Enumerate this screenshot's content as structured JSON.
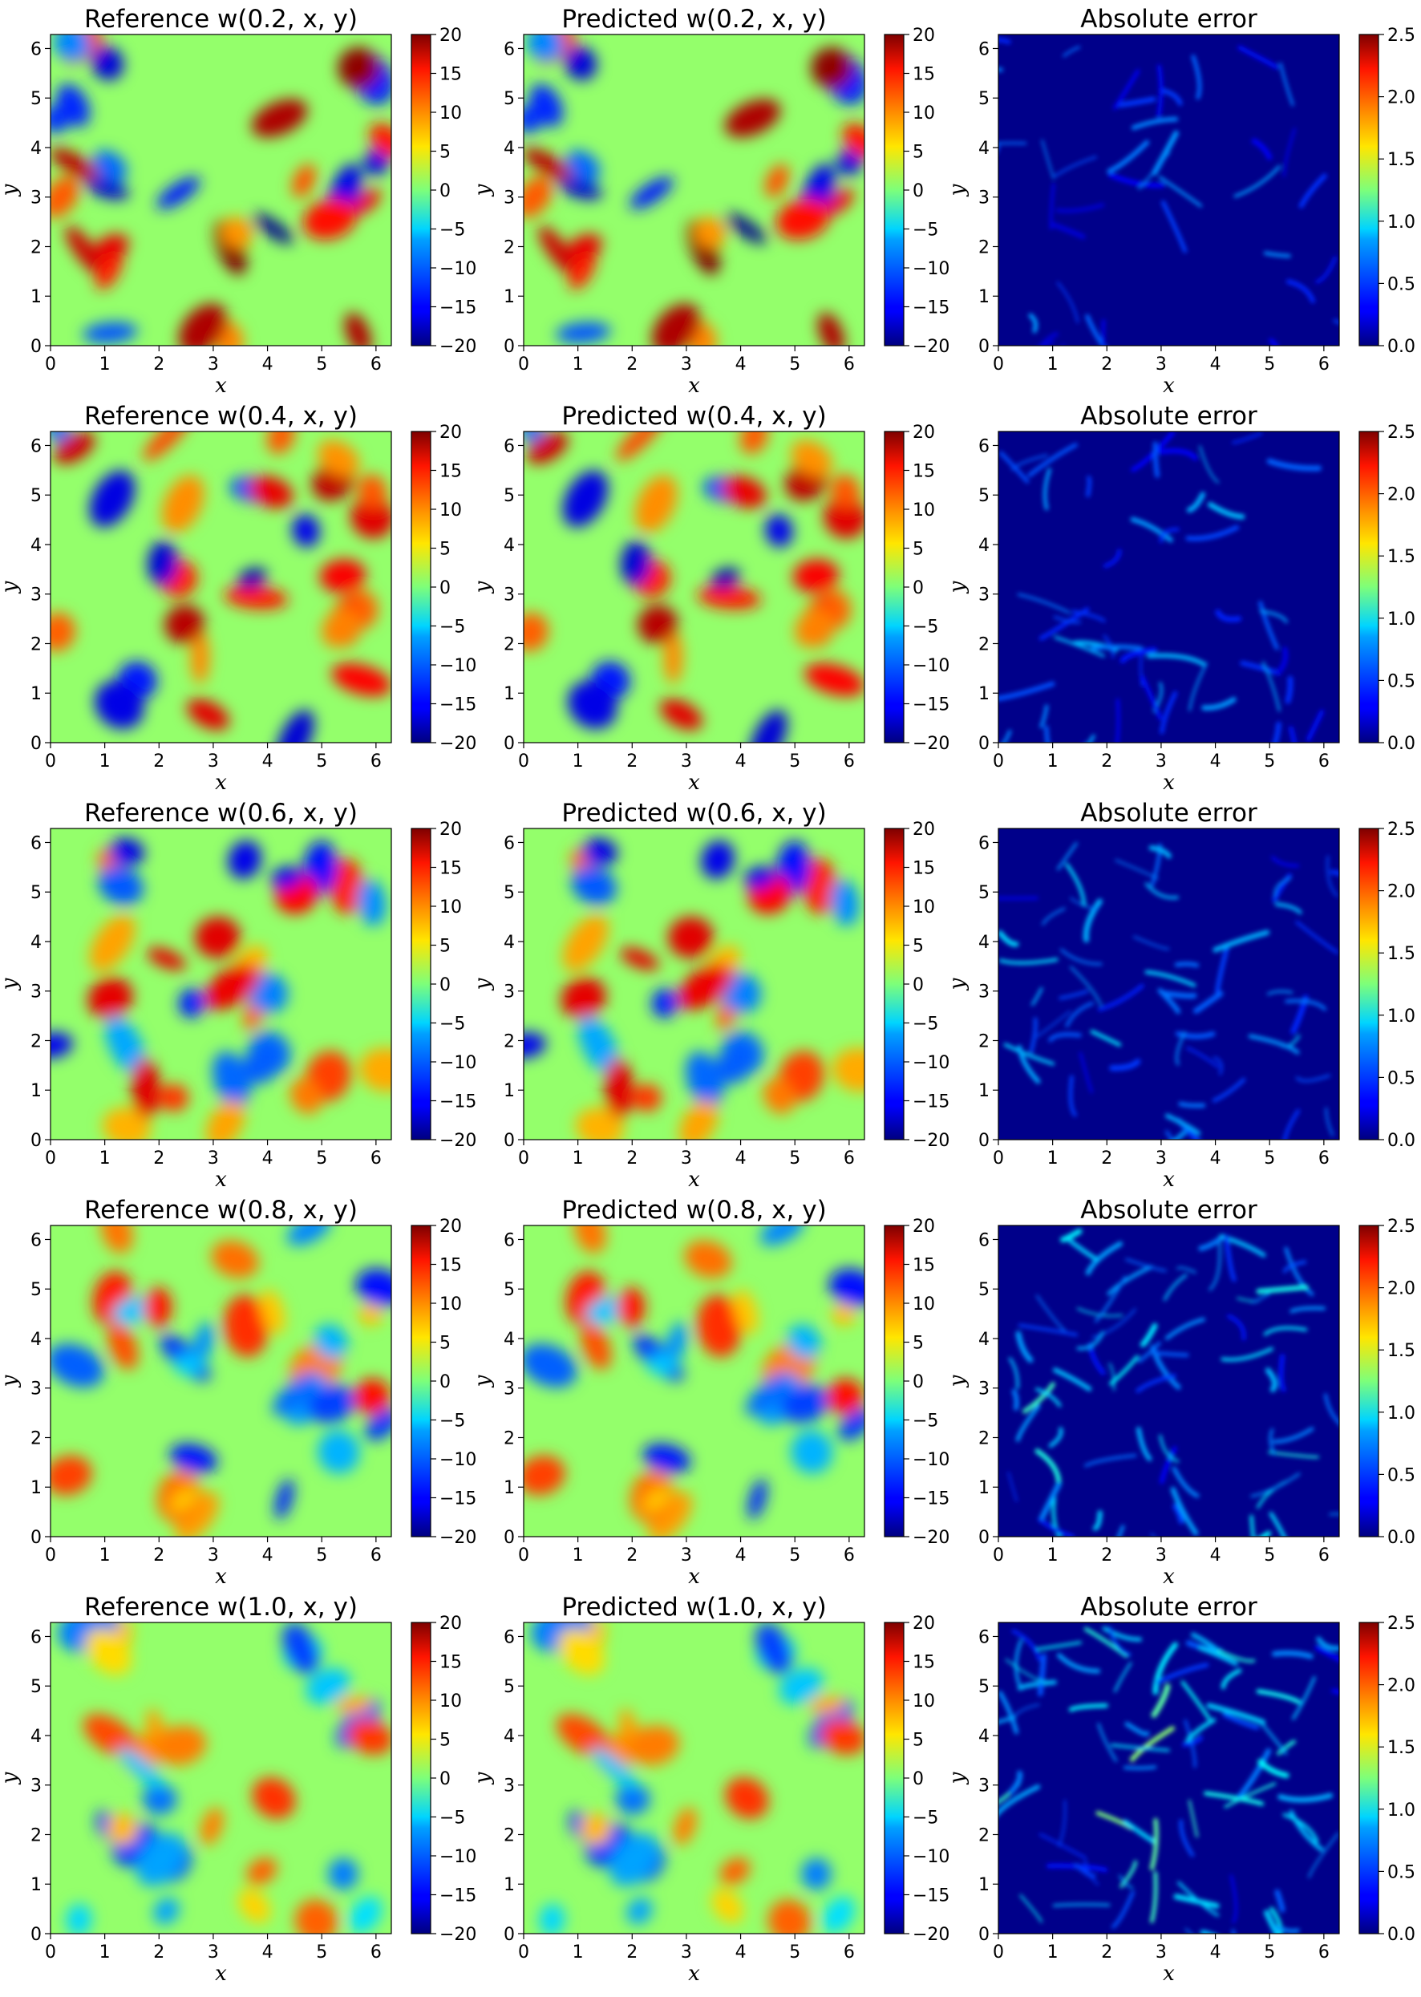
{
  "figure": {
    "rows": 5,
    "cols": 3
  },
  "chart_data": [
    {
      "type": "heatmap",
      "title": "Reference w(0.2, x, y)",
      "xlabel": "x",
      "ylabel": "y",
      "xlim": [
        0,
        6.283
      ],
      "ylim": [
        0,
        6.283
      ],
      "xticks": [
        "0",
        "1",
        "2",
        "3",
        "4",
        "5",
        "6"
      ],
      "yticks": [
        "0",
        "1",
        "2",
        "3",
        "4",
        "5",
        "6"
      ],
      "colorbar": {
        "range": [
          -20,
          20
        ],
        "ticks": [
          "20",
          "15",
          "10",
          "5",
          "0",
          "−5",
          "−10",
          "−15",
          "−20"
        ],
        "colormap": "jet"
      }
    },
    {
      "type": "heatmap",
      "title": "Predicted w(0.2, x, y)",
      "xlabel": "x",
      "ylabel": "y",
      "xlim": [
        0,
        6.283
      ],
      "ylim": [
        0,
        6.283
      ],
      "xticks": [
        "0",
        "1",
        "2",
        "3",
        "4",
        "5",
        "6"
      ],
      "yticks": [
        "0",
        "1",
        "2",
        "3",
        "4",
        "5",
        "6"
      ],
      "colorbar": {
        "range": [
          -20,
          20
        ],
        "ticks": [
          "20",
          "15",
          "10",
          "5",
          "0",
          "−5",
          "−10",
          "−15",
          "−20"
        ],
        "colormap": "jet"
      }
    },
    {
      "type": "heatmap",
      "title": "Absolute error",
      "xlabel": "x",
      "ylabel": "y",
      "xlim": [
        0,
        6.283
      ],
      "ylim": [
        0,
        6.283
      ],
      "xticks": [
        "0",
        "1",
        "2",
        "3",
        "4",
        "5",
        "6"
      ],
      "yticks": [
        "0",
        "1",
        "2",
        "3",
        "4",
        "5",
        "6"
      ],
      "colorbar": {
        "range": [
          0,
          2.5
        ],
        "ticks": [
          "2.5",
          "2.0",
          "1.5",
          "1.0",
          "0.5",
          "0.0"
        ],
        "colormap": "jet"
      }
    },
    {
      "type": "heatmap",
      "title": "Reference w(0.4, x, y)",
      "xlabel": "x",
      "ylabel": "y",
      "xlim": [
        0,
        6.283
      ],
      "ylim": [
        0,
        6.283
      ],
      "xticks": [
        "0",
        "1",
        "2",
        "3",
        "4",
        "5",
        "6"
      ],
      "yticks": [
        "0",
        "1",
        "2",
        "3",
        "4",
        "5",
        "6"
      ],
      "colorbar": {
        "range": [
          -20,
          20
        ],
        "ticks": [
          "20",
          "15",
          "10",
          "5",
          "0",
          "−5",
          "−10",
          "−15",
          "−20"
        ],
        "colormap": "jet"
      }
    },
    {
      "type": "heatmap",
      "title": "Predicted w(0.4, x, y)",
      "xlabel": "x",
      "ylabel": "y",
      "xlim": [
        0,
        6.283
      ],
      "ylim": [
        0,
        6.283
      ],
      "xticks": [
        "0",
        "1",
        "2",
        "3",
        "4",
        "5",
        "6"
      ],
      "yticks": [
        "0",
        "1",
        "2",
        "3",
        "4",
        "5",
        "6"
      ],
      "colorbar": {
        "range": [
          -20,
          20
        ],
        "ticks": [
          "20",
          "15",
          "10",
          "5",
          "0",
          "−5",
          "−10",
          "−15",
          "−20"
        ],
        "colormap": "jet"
      }
    },
    {
      "type": "heatmap",
      "title": "Absolute error",
      "xlabel": "x",
      "ylabel": "y",
      "xlim": [
        0,
        6.283
      ],
      "ylim": [
        0,
        6.283
      ],
      "xticks": [
        "0",
        "1",
        "2",
        "3",
        "4",
        "5",
        "6"
      ],
      "yticks": [
        "0",
        "1",
        "2",
        "3",
        "4",
        "5",
        "6"
      ],
      "colorbar": {
        "range": [
          0,
          2.5
        ],
        "ticks": [
          "2.5",
          "2.0",
          "1.5",
          "1.0",
          "0.5",
          "0.0"
        ],
        "colormap": "jet"
      }
    },
    {
      "type": "heatmap",
      "title": "Reference w(0.6, x, y)",
      "xlabel": "x",
      "ylabel": "y",
      "xlim": [
        0,
        6.283
      ],
      "ylim": [
        0,
        6.283
      ],
      "xticks": [
        "0",
        "1",
        "2",
        "3",
        "4",
        "5",
        "6"
      ],
      "yticks": [
        "0",
        "1",
        "2",
        "3",
        "4",
        "5",
        "6"
      ],
      "colorbar": {
        "range": [
          -20,
          20
        ],
        "ticks": [
          "20",
          "15",
          "10",
          "5",
          "0",
          "−5",
          "−10",
          "−15",
          "−20"
        ],
        "colormap": "jet"
      }
    },
    {
      "type": "heatmap",
      "title": "Predicted w(0.6, x, y)",
      "xlabel": "x",
      "ylabel": "y",
      "xlim": [
        0,
        6.283
      ],
      "ylim": [
        0,
        6.283
      ],
      "xticks": [
        "0",
        "1",
        "2",
        "3",
        "4",
        "5",
        "6"
      ],
      "yticks": [
        "0",
        "1",
        "2",
        "3",
        "4",
        "5",
        "6"
      ],
      "colorbar": {
        "range": [
          -20,
          20
        ],
        "ticks": [
          "20",
          "15",
          "10",
          "5",
          "0",
          "−5",
          "−10",
          "−15",
          "−20"
        ],
        "colormap": "jet"
      }
    },
    {
      "type": "heatmap",
      "title": "Absolute error",
      "xlabel": "x",
      "ylabel": "y",
      "xlim": [
        0,
        6.283
      ],
      "ylim": [
        0,
        6.283
      ],
      "xticks": [
        "0",
        "1",
        "2",
        "3",
        "4",
        "5",
        "6"
      ],
      "yticks": [
        "0",
        "1",
        "2",
        "3",
        "4",
        "5",
        "6"
      ],
      "colorbar": {
        "range": [
          0,
          2.5
        ],
        "ticks": [
          "2.5",
          "2.0",
          "1.5",
          "1.0",
          "0.5",
          "0.0"
        ],
        "colormap": "jet"
      }
    },
    {
      "type": "heatmap",
      "title": "Reference w(0.8, x, y)",
      "xlabel": "x",
      "ylabel": "y",
      "xlim": [
        0,
        6.283
      ],
      "ylim": [
        0,
        6.283
      ],
      "xticks": [
        "0",
        "1",
        "2",
        "3",
        "4",
        "5",
        "6"
      ],
      "yticks": [
        "0",
        "1",
        "2",
        "3",
        "4",
        "5",
        "6"
      ],
      "colorbar": {
        "range": [
          -20,
          20
        ],
        "ticks": [
          "20",
          "15",
          "10",
          "5",
          "0",
          "−5",
          "−10",
          "−15",
          "−20"
        ],
        "colormap": "jet"
      }
    },
    {
      "type": "heatmap",
      "title": "Predicted w(0.8, x, y)",
      "xlabel": "x",
      "ylabel": "y",
      "xlim": [
        0,
        6.283
      ],
      "ylim": [
        0,
        6.283
      ],
      "xticks": [
        "0",
        "1",
        "2",
        "3",
        "4",
        "5",
        "6"
      ],
      "yticks": [
        "0",
        "1",
        "2",
        "3",
        "4",
        "5",
        "6"
      ],
      "colorbar": {
        "range": [
          -20,
          20
        ],
        "ticks": [
          "20",
          "15",
          "10",
          "5",
          "0",
          "−5",
          "−10",
          "−15",
          "−20"
        ],
        "colormap": "jet"
      }
    },
    {
      "type": "heatmap",
      "title": "Absolute error",
      "xlabel": "x",
      "ylabel": "y",
      "xlim": [
        0,
        6.283
      ],
      "ylim": [
        0,
        6.283
      ],
      "xticks": [
        "0",
        "1",
        "2",
        "3",
        "4",
        "5",
        "6"
      ],
      "yticks": [
        "0",
        "1",
        "2",
        "3",
        "4",
        "5",
        "6"
      ],
      "colorbar": {
        "range": [
          0,
          2.5
        ],
        "ticks": [
          "2.5",
          "2.0",
          "1.5",
          "1.0",
          "0.5",
          "0.0"
        ],
        "colormap": "jet"
      }
    },
    {
      "type": "heatmap",
      "title": "Reference w(1.0, x, y)",
      "xlabel": "x",
      "ylabel": "y",
      "xlim": [
        0,
        6.283
      ],
      "ylim": [
        0,
        6.283
      ],
      "xticks": [
        "0",
        "1",
        "2",
        "3",
        "4",
        "5",
        "6"
      ],
      "yticks": [
        "0",
        "1",
        "2",
        "3",
        "4",
        "5",
        "6"
      ],
      "colorbar": {
        "range": [
          -20,
          20
        ],
        "ticks": [
          "20",
          "15",
          "10",
          "5",
          "0",
          "−5",
          "−10",
          "−15",
          "−20"
        ],
        "colormap": "jet"
      }
    },
    {
      "type": "heatmap",
      "title": "Predicted w(1.0, x, y)",
      "xlabel": "x",
      "ylabel": "y",
      "xlim": [
        0,
        6.283
      ],
      "ylim": [
        0,
        6.283
      ],
      "xticks": [
        "0",
        "1",
        "2",
        "3",
        "4",
        "5",
        "6"
      ],
      "yticks": [
        "0",
        "1",
        "2",
        "3",
        "4",
        "5",
        "6"
      ],
      "colorbar": {
        "range": [
          -20,
          20
        ],
        "ticks": [
          "20",
          "15",
          "10",
          "5",
          "0",
          "−5",
          "−10",
          "−15",
          "−20"
        ],
        "colormap": "jet"
      }
    },
    {
      "type": "heatmap",
      "title": "Absolute error",
      "xlabel": "x",
      "ylabel": "y",
      "xlim": [
        0,
        6.283
      ],
      "ylim": [
        0,
        6.283
      ],
      "xticks": [
        "0",
        "1",
        "2",
        "3",
        "4",
        "5",
        "6"
      ],
      "yticks": [
        "0",
        "1",
        "2",
        "3",
        "4",
        "5",
        "6"
      ],
      "colorbar": {
        "range": [
          0,
          2.5
        ],
        "ticks": [
          "2.5",
          "2.0",
          "1.5",
          "1.0",
          "0.5",
          "0.0"
        ],
        "colormap": "jet"
      }
    }
  ]
}
